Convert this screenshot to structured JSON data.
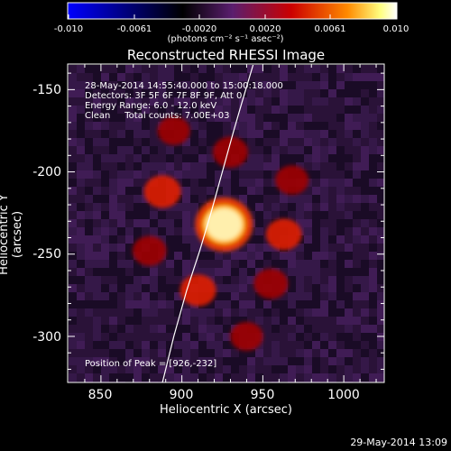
{
  "chart_data": {
    "type": "heatmap",
    "title": "Reconstructed RHESSI Image",
    "xlabel": "Heliocentric X (arcsec)",
    "ylabel": "Heliocentric Y (arcsec)",
    "xlim": [
      830,
      1025
    ],
    "ylim": [
      -328,
      -135
    ],
    "x_ticks": [
      850,
      900,
      950,
      1000
    ],
    "y_ticks": [
      -150,
      -200,
      -250,
      -300
    ],
    "colorbar": {
      "range": [
        -0.01,
        0.01
      ],
      "ticks": [
        "-0.010",
        "-0.0061",
        "-0.0020",
        "0.0020",
        "0.0061",
        "0.010"
      ],
      "units_label": "(photons cm⁻² s⁻¹ asec⁻²)",
      "colormap": [
        "#0000ff",
        "#000000",
        "#5a1e6e",
        "#cc0000",
        "#ff8a00",
        "#ffff80",
        "#ffffff"
      ]
    },
    "peak": {
      "x": 926,
      "y": -232
    },
    "sources": [
      {
        "x": 926,
        "y": -232,
        "value": 0.01
      },
      {
        "x": 888,
        "y": -212,
        "value": 0.0045
      },
      {
        "x": 930,
        "y": -188,
        "value": 0.0035
      },
      {
        "x": 963,
        "y": -238,
        "value": 0.0038
      },
      {
        "x": 910,
        "y": -272,
        "value": 0.004
      },
      {
        "x": 955,
        "y": -268,
        "value": 0.003
      },
      {
        "x": 880,
        "y": -248,
        "value": 0.0028
      },
      {
        "x": 968,
        "y": -205,
        "value": 0.0025
      },
      {
        "x": 940,
        "y": -300,
        "value": 0.0022
      },
      {
        "x": 895,
        "y": -175,
        "value": 0.002
      }
    ],
    "limb_curve": [
      [
        888,
        -328
      ],
      [
        895,
        -300
      ],
      [
        903,
        -272
      ],
      [
        911,
        -248
      ],
      [
        918,
        -225
      ],
      [
        925,
        -200
      ],
      [
        932,
        -175
      ],
      [
        937,
        -158
      ],
      [
        944,
        -135
      ]
    ]
  },
  "annotations": {
    "time_range": "28-May-2014 14:55:40.000 to 15:00:18.000",
    "detectors": "Detectors: 3F 5F 6F 7F 8F 9F, Att 0",
    "energy_range": "Energy Range: 6.0 - 12.0 keV",
    "clean_counts": "Clean     Total counts: 7.00E+03",
    "peak_position": "Position of Peak = [926,-232]"
  },
  "timestamp": "29-May-2014 13:09"
}
